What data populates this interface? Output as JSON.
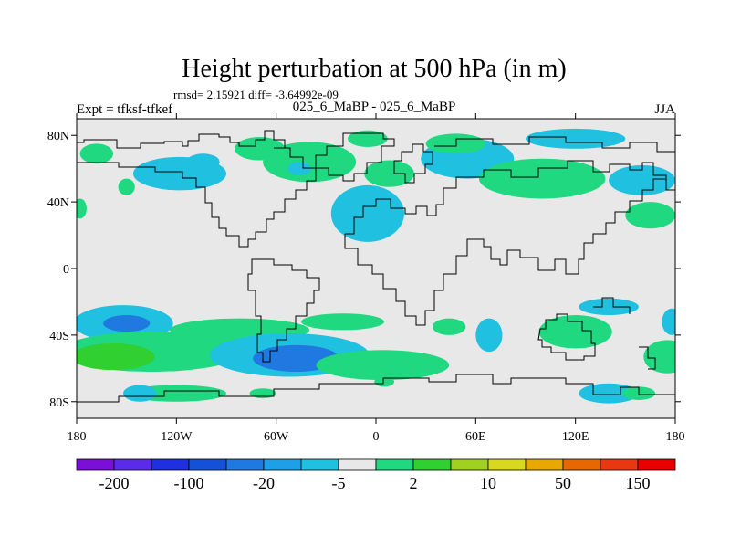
{
  "chart_data": {
    "type": "heatmap",
    "title": "Height perturbation at 500 hPa (in m)",
    "stats": "rmsd= 2.15921 diff= -3.64992e-09",
    "subtitle": "025_6_MaBP - 025_6_MaBP",
    "left_label": "Expt = tfksf-tfkef",
    "right_label": "JJA",
    "x_range": [
      -180,
      180
    ],
    "y_range": [
      -90,
      90
    ],
    "x_ticks": [
      {
        "value": -180,
        "label": "180"
      },
      {
        "value": -120,
        "label": "120W"
      },
      {
        "value": -60,
        "label": "60W"
      },
      {
        "value": 0,
        "label": "0"
      },
      {
        "value": 60,
        "label": "60E"
      },
      {
        "value": 120,
        "label": "120E"
      },
      {
        "value": 180,
        "label": "180"
      }
    ],
    "y_ticks": [
      {
        "value": 80,
        "label": "80N"
      },
      {
        "value": 40,
        "label": "40N"
      },
      {
        "value": 0,
        "label": "0"
      },
      {
        "value": -40,
        "label": "40S"
      },
      {
        "value": -80,
        "label": "80S"
      }
    ],
    "colorbar": {
      "colors": [
        "#7a10d8",
        "#5a2be8",
        "#2030e0",
        "#1550d8",
        "#2079e0",
        "#1ea0e8",
        "#20c0e0",
        "#e8e8e8",
        "#20d880",
        "#30d030",
        "#a0d020",
        "#d8d820",
        "#e8a800",
        "#e86800",
        "#e83810",
        "#e80000"
      ],
      "labels": [
        {
          "after_index": 0,
          "text": "-200"
        },
        {
          "after_index": 2,
          "text": "-100"
        },
        {
          "after_index": 4,
          "text": "-20"
        },
        {
          "after_index": 6,
          "text": "-5"
        },
        {
          "after_index": 8,
          "text": "2"
        },
        {
          "after_index": 10,
          "text": "10"
        },
        {
          "after_index": 12,
          "text": "50"
        },
        {
          "after_index": 14,
          "text": "150"
        }
      ]
    },
    "regions": [
      {
        "level": "-5",
        "color": "#20c0e0",
        "lon": -152,
        "lat": -33,
        "rlon": 30,
        "rlat": 11
      },
      {
        "level": "-20",
        "color": "#2079e0",
        "lon": -150,
        "lat": -33,
        "rlon": 14,
        "rlat": 5
      },
      {
        "level": "2",
        "color": "#20d880",
        "lon": -135,
        "lat": -50,
        "rlon": 55,
        "rlat": 12
      },
      {
        "level": "10",
        "color": "#30d030",
        "lon": -158,
        "lat": -53,
        "rlon": 25,
        "rlat": 8
      },
      {
        "level": "2",
        "color": "#20d880",
        "lon": -82,
        "lat": -37,
        "rlon": 42,
        "rlat": 7
      },
      {
        "level": "-5",
        "color": "#20c0e0",
        "lon": -52,
        "lat": -52,
        "rlon": 48,
        "rlat": 13
      },
      {
        "level": "-20",
        "color": "#2079e0",
        "lon": -48,
        "lat": -54,
        "rlon": 26,
        "rlat": 8
      },
      {
        "level": "2",
        "color": "#20d880",
        "lon": 4,
        "lat": -58,
        "rlon": 40,
        "rlat": 9
      },
      {
        "level": "2",
        "color": "#20d880",
        "lon": -20,
        "lat": -32,
        "rlon": 25,
        "rlat": 5
      },
      {
        "level": "-5",
        "color": "#20c0e0",
        "lon": 68,
        "lat": -40,
        "rlon": 8,
        "rlat": 10
      },
      {
        "level": "2",
        "color": "#20d880",
        "lon": 44,
        "lat": -35,
        "rlon": 10,
        "rlat": 5
      },
      {
        "level": "2",
        "color": "#20d880",
        "lon": 120,
        "lat": -38,
        "rlon": 22,
        "rlat": 10
      },
      {
        "level": "-5",
        "color": "#20c0e0",
        "lon": 140,
        "lat": -23,
        "rlon": 18,
        "rlat": 5
      },
      {
        "level": "2",
        "color": "#20d880",
        "lon": 175,
        "lat": -53,
        "rlon": 14,
        "rlat": 10
      },
      {
        "level": "-5",
        "color": "#20c0e0",
        "lon": 140,
        "lat": -75,
        "rlon": 18,
        "rlat": 6
      },
      {
        "level": "-5",
        "color": "#20c0e0",
        "lon": 178,
        "lat": -32,
        "rlon": 6,
        "rlat": 8
      },
      {
        "level": "2",
        "color": "#20d880",
        "lon": -120,
        "lat": -75,
        "rlon": 30,
        "rlat": 5
      },
      {
        "level": "-5",
        "color": "#20c0e0",
        "lon": -142,
        "lat": -75,
        "rlon": 10,
        "rlat": 5
      },
      {
        "level": "2",
        "color": "#20d880",
        "lon": -68,
        "lat": -75,
        "rlon": 8,
        "rlat": 3
      },
      {
        "level": "2",
        "color": "#20d880",
        "lon": 5,
        "lat": -68,
        "rlon": 6,
        "rlat": 3
      },
      {
        "level": "2",
        "color": "#20d880",
        "lon": 158,
        "lat": -75,
        "rlon": 10,
        "rlat": 4
      },
      {
        "level": "2",
        "color": "#20d880",
        "lon": -168,
        "lat": 69,
        "rlon": 10,
        "rlat": 6
      },
      {
        "level": "-5",
        "color": "#20c0e0",
        "lon": -118,
        "lat": 57,
        "rlon": 28,
        "rlat": 10
      },
      {
        "level": "2",
        "color": "#20d880",
        "lon": -150,
        "lat": 49,
        "rlon": 5,
        "rlat": 5
      },
      {
        "level": "-5",
        "color": "#20c0e0",
        "lon": -104,
        "lat": 64,
        "rlon": 10,
        "rlat": 5
      },
      {
        "level": "2",
        "color": "#20d880",
        "lon": -70,
        "lat": 72,
        "rlon": 15,
        "rlat": 7
      },
      {
        "level": "2",
        "color": "#20d880",
        "lon": -40,
        "lat": 64,
        "rlon": 28,
        "rlat": 12
      },
      {
        "level": "-5",
        "color": "#20c0e0",
        "lon": -46,
        "lat": 60,
        "rlon": 7,
        "rlat": 4
      },
      {
        "level": "2",
        "color": "#20d880",
        "lon": -5,
        "lat": 78,
        "rlon": 12,
        "rlat": 5
      },
      {
        "level": "-5",
        "color": "#20c0e0",
        "lon": -5,
        "lat": 33,
        "rlon": 22,
        "rlat": 17
      },
      {
        "level": "-5",
        "color": "#20c0e0",
        "lon": 55,
        "lat": 66,
        "rlon": 28,
        "rlat": 12
      },
      {
        "level": "2",
        "color": "#20d880",
        "lon": 48,
        "lat": 75,
        "rlon": 18,
        "rlat": 6
      },
      {
        "level": "2",
        "color": "#20d880",
        "lon": 100,
        "lat": 54,
        "rlon": 38,
        "rlat": 12
      },
      {
        "level": "2",
        "color": "#20d880",
        "lon": 8,
        "lat": 57,
        "rlon": 15,
        "rlat": 8
      },
      {
        "level": "-5",
        "color": "#20c0e0",
        "lon": 160,
        "lat": 53,
        "rlon": 20,
        "rlat": 9
      },
      {
        "level": "-5",
        "color": "#20c0e0",
        "lon": 120,
        "lat": 78,
        "rlon": 30,
        "rlat": 6
      },
      {
        "level": "2",
        "color": "#20d880",
        "lon": 165,
        "lat": 32,
        "rlon": 15,
        "rlat": 8
      },
      {
        "level": "2",
        "color": "#20d880",
        "lon": -178,
        "lat": 36,
        "rlon": 4,
        "rlat": 6
      }
    ]
  }
}
